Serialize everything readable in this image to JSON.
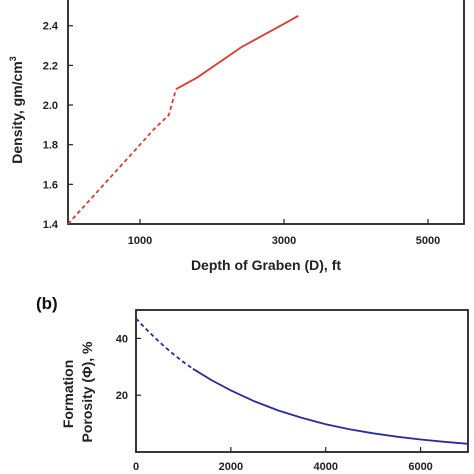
{
  "chart_data": [
    {
      "panel_label": "",
      "type": "line",
      "xlabel": "Depth of Graben (D), ft",
      "ylabel": "Density, gm/cm",
      "ylabel_superscript": "3",
      "xlim": [
        0,
        5500
      ],
      "ylim": [
        1.4,
        2.55
      ],
      "xticks": [
        1000,
        3000,
        5000
      ],
      "yticks": [
        1.4,
        1.6,
        1.8,
        2.0,
        2.2,
        2.4
      ],
      "xtick_labels": [
        "1000",
        "3000",
        "5000"
      ],
      "ytick_labels": [
        "1.4",
        "1.6",
        "1.8",
        "2.0",
        "2.2",
        "2.4"
      ],
      "grid": false,
      "color": "#e03a2a",
      "series": [
        {
          "style": "dashed",
          "x": [
            0,
            200,
            400,
            600,
            800,
            1000,
            1200,
            1400,
            1500
          ],
          "y": [
            1.4,
            1.48,
            1.56,
            1.64,
            1.72,
            1.8,
            1.88,
            1.95,
            2.08
          ]
        },
        {
          "style": "solid",
          "x": [
            1500,
            1800,
            2000,
            2200,
            2400,
            2600,
            2800,
            3000,
            3200
          ],
          "y": [
            2.08,
            2.14,
            2.19,
            2.24,
            2.29,
            2.33,
            2.37,
            2.41,
            2.45
          ]
        }
      ]
    },
    {
      "panel_label": "(b)",
      "type": "line",
      "xlabel": "",
      "ylabel_lines": [
        "Formation",
        "Porosity (Φ), %"
      ],
      "xlim": [
        0,
        7000
      ],
      "ylim": [
        0,
        50
      ],
      "xticks": [
        0,
        2000,
        4000,
        6000
      ],
      "yticks": [
        20,
        40
      ],
      "xtick_labels": [
        "0",
        "2000",
        "4000",
        "6000"
      ],
      "ytick_labels": [
        "20",
        "40"
      ],
      "grid": false,
      "color": "#2a2aa8",
      "series": [
        {
          "style": "dashed",
          "x": [
            0,
            200,
            400,
            600,
            800,
            1000,
            1200
          ],
          "y": [
            47,
            43.5,
            40.2,
            37.1,
            34.3,
            31.7,
            29.3
          ]
        },
        {
          "style": "solid",
          "x": [
            1200,
            1600,
            2000,
            2500,
            3000,
            3500,
            4000,
            4500,
            5000,
            5500,
            6000,
            6500,
            7000
          ],
          "y": [
            29.3,
            25.2,
            21.7,
            17.8,
            14.6,
            12.0,
            9.8,
            8.0,
            6.6,
            5.4,
            4.4,
            3.6,
            2.9
          ]
        }
      ]
    }
  ]
}
